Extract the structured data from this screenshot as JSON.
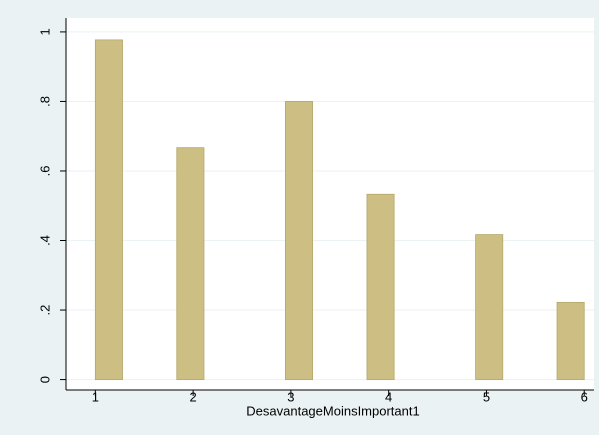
{
  "chart_data": {
    "type": "histogram",
    "x_label": "DesavantageMoinsImportant1",
    "bins": [
      1,
      1.278,
      1.556,
      1.833,
      2.111,
      2.389,
      2.667,
      2.944,
      3.222,
      3.5,
      3.778,
      4.056,
      4.333,
      4.611,
      4.889,
      5.167,
      5.444,
      5.722,
      6
    ],
    "values": [
      0.977,
      0,
      0,
      0.667,
      0,
      0,
      0,
      0.8,
      0,
      0,
      0.533,
      0,
      0,
      0,
      0.417,
      0,
      0,
      0.222
    ],
    "color": "#cdbf84",
    "xlim": [
      0.7,
      6.1
    ],
    "xticks": [
      1,
      2,
      3,
      4,
      5,
      6
    ],
    "ylim": [
      -0.03,
      1.04
    ],
    "yticks": [
      0,
      {
        "value": 0.2,
        "label": ".2"
      },
      {
        "value": 0.4,
        "label": ".4"
      },
      {
        "value": 0.6,
        "label": ".6"
      },
      {
        "value": 0.8,
        "label": ".8"
      },
      1
    ],
    "grid": true
  }
}
